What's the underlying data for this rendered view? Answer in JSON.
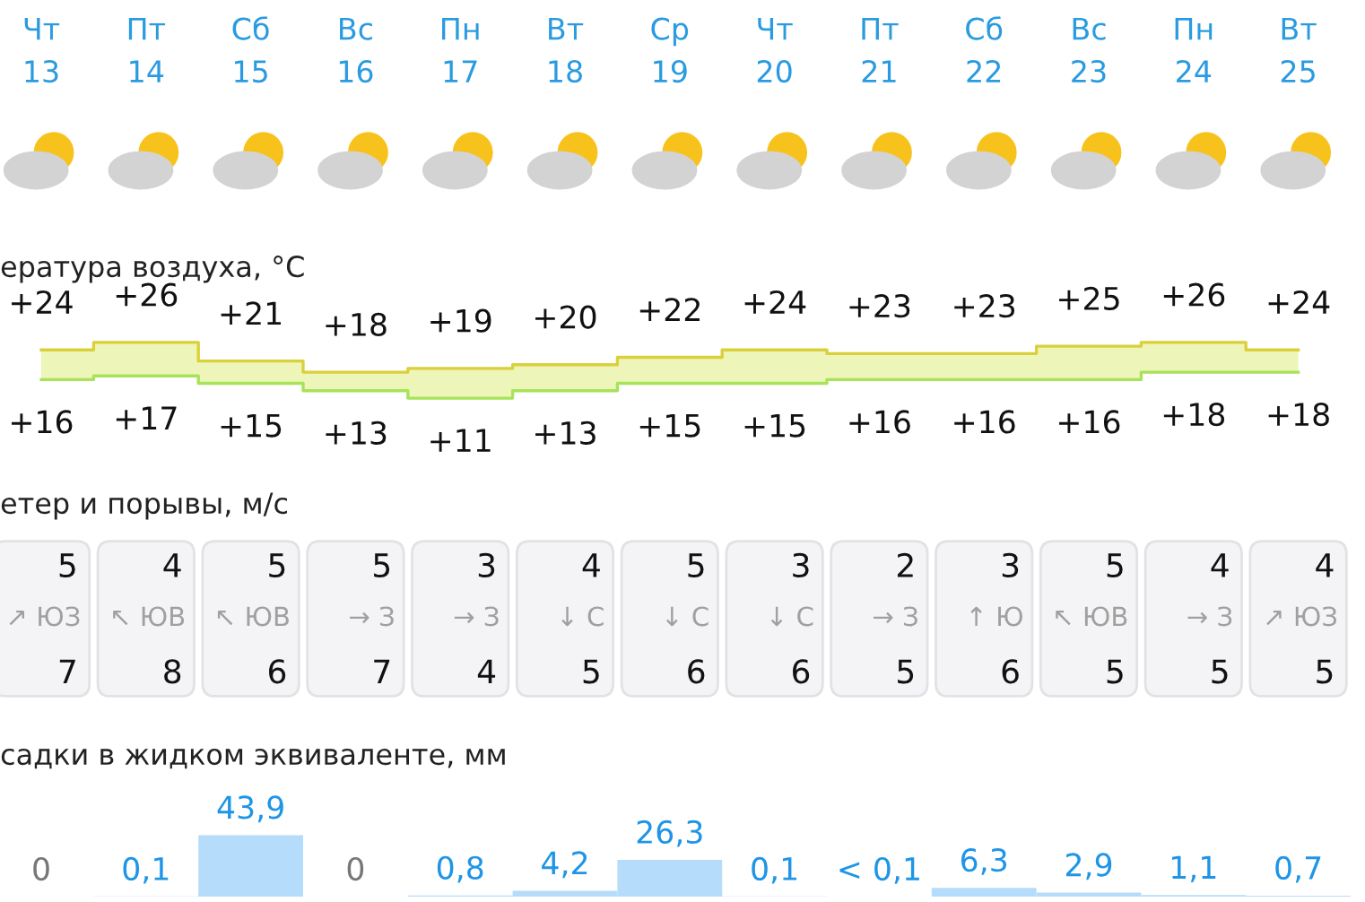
{
  "chart_data": [
    {
      "type": "step",
      "title": "ература воздуха, °C",
      "categories": [
        "Чт\n13",
        "Пт\n14",
        "Сб\n15",
        "Вс\n16",
        "Пн\n17",
        "Вт\n18",
        "Ср\n19",
        "Чт\n20",
        "Пт\n21",
        "Сб\n22",
        "Вс\n23",
        "Пн\n24",
        "Вт\n25"
      ],
      "series": [
        {
          "color": "#d9d03a",
          "values": [
            24,
            26,
            21,
            18,
            19,
            20,
            22,
            24,
            23,
            23,
            25,
            26,
            24
          ],
          "lower": [
            16,
            17,
            15,
            13,
            11,
            13,
            15,
            15,
            16,
            16,
            16,
            18,
            18
          ],
          "upper": [
            24,
            26,
            21,
            18,
            19,
            20,
            22,
            24,
            23,
            23,
            25,
            26,
            24
          ],
          "value_labels": [
            "+24",
            "+26",
            "+21",
            "+18",
            "+19",
            "+20",
            "+22",
            "+24",
            "+23",
            "+23",
            "+25",
            "+26",
            "+24"
          ]
        },
        {
          "color": "#a6e35a",
          "values": [
            16,
            17,
            15,
            13,
            11,
            13,
            15,
            15,
            16,
            16,
            16,
            18,
            18
          ],
          "value_labels": [
            "+16",
            "+17",
            "+15",
            "+13",
            "+11",
            "+13",
            "+15",
            "+15",
            "+16",
            "+16",
            "+16",
            "+18",
            "+18"
          ]
        }
      ],
      "tick_labels": "x"
    },
    {
      "type": "other",
      "title": "етер и порывы, м/с",
      "categories": [
        "↗ ЮЗ",
        "↖ ЮВ",
        "↖ ЮВ",
        "→ З",
        "→ З",
        "↓ С",
        "↓ С",
        "↓ С",
        "→ З",
        "↑ Ю",
        "↖ ЮВ",
        "→ З",
        "↗ ЮЗ"
      ],
      "series": [
        {
          "values": [
            5,
            4,
            5,
            5,
            3,
            4,
            5,
            3,
            2,
            3,
            5,
            4,
            4
          ]
        },
        {
          "values": [
            7,
            8,
            6,
            7,
            4,
            5,
            6,
            6,
            5,
            6,
            5,
            5,
            5
          ]
        }
      ],
      "data_labels": true
    },
    {
      "type": "bar",
      "title": "садки в жидком эквиваленте, мм",
      "categories": [
        null,
        null,
        null,
        null,
        null,
        null,
        null,
        null,
        null,
        null,
        null,
        null,
        null
      ],
      "values": [
        0,
        0.1,
        43.9,
        0,
        0.8,
        4.2,
        26.3,
        0.1,
        null,
        6.3,
        2.9,
        1.1,
        0.7
      ],
      "value_labels": [
        "0",
        "0,1",
        "43,9",
        "0",
        "0,8",
        "4,2",
        "26,3",
        "0,1",
        "< 0,1",
        "6,3",
        "2,9",
        "1,1",
        "0,7"
      ],
      "color": "#b5dcfa"
    }
  ]
}
